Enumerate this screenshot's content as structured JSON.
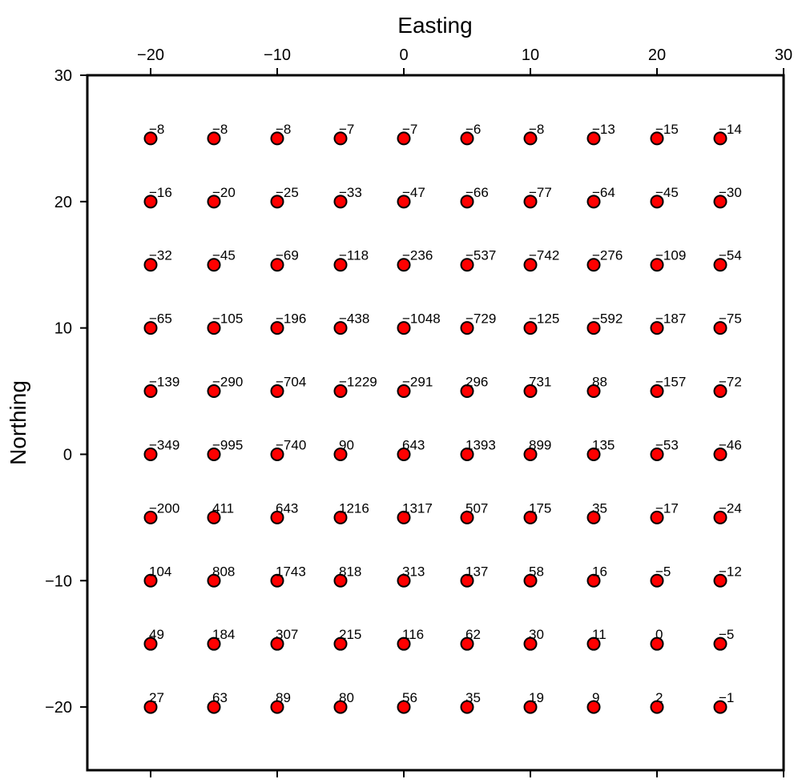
{
  "chart_data": {
    "type": "scatter",
    "xlabel": "Easting",
    "ylabel": "Northing",
    "xlim": [
      -25,
      30
    ],
    "ylim": [
      -25,
      30
    ],
    "x_ticks": [
      "−20",
      "−10",
      "0",
      "10",
      "20",
      "30"
    ],
    "y_ticks": [
      "30",
      "20",
      "10",
      "0",
      "−10",
      "−20"
    ],
    "x_tick_values": [
      -20,
      -10,
      0,
      10,
      20,
      30
    ],
    "y_tick_values": [
      30,
      20,
      10,
      0,
      -10,
      -20
    ],
    "bottom_tick_values": [
      -20,
      -10,
      0,
      10,
      20,
      30
    ],
    "x_grid": [
      -20,
      -15,
      -10,
      -5,
      0,
      5,
      10,
      15,
      20,
      25
    ],
    "y_grid": [
      25,
      20,
      15,
      10,
      5,
      0,
      -5,
      -10,
      -15,
      -20
    ],
    "marker_color": "#ff0000",
    "marker_edge": "#000000",
    "grid": false,
    "values": [
      [
        "−8",
        "−8",
        "−8",
        "−7",
        "−7",
        "−6",
        "−8",
        "−13",
        "−15",
        "−14"
      ],
      [
        "−16",
        "−20",
        "−25",
        "−33",
        "−47",
        "−66",
        "−77",
        "−64",
        "−45",
        "−30"
      ],
      [
        "−32",
        "−45",
        "−69",
        "−118",
        "−236",
        "−537",
        "−742",
        "−276",
        "−109",
        "−54"
      ],
      [
        "−65",
        "−105",
        "−196",
        "−438",
        "−1048",
        "−729",
        "−125",
        "−592",
        "−187",
        "−75"
      ],
      [
        "−139",
        "−290",
        "−704",
        "−1229",
        "−291",
        "296",
        "731",
        "88",
        "−157",
        "−72"
      ],
      [
        "−349",
        "−995",
        "−740",
        "90",
        "643",
        "1393",
        "899",
        "135",
        "−53",
        "−46"
      ],
      [
        "−200",
        "411",
        "643",
        "1216",
        "1317",
        "507",
        "175",
        "35",
        "−17",
        "−24"
      ],
      [
        "104",
        "808",
        "1743",
        "818",
        "313",
        "137",
        "58",
        "16",
        "−5",
        "−12"
      ],
      [
        "49",
        "184",
        "307",
        "215",
        "116",
        "62",
        "30",
        "11",
        "0",
        "−5"
      ],
      [
        "27",
        "63",
        "89",
        "80",
        "56",
        "35",
        "19",
        "9",
        "2",
        "−1"
      ]
    ]
  }
}
